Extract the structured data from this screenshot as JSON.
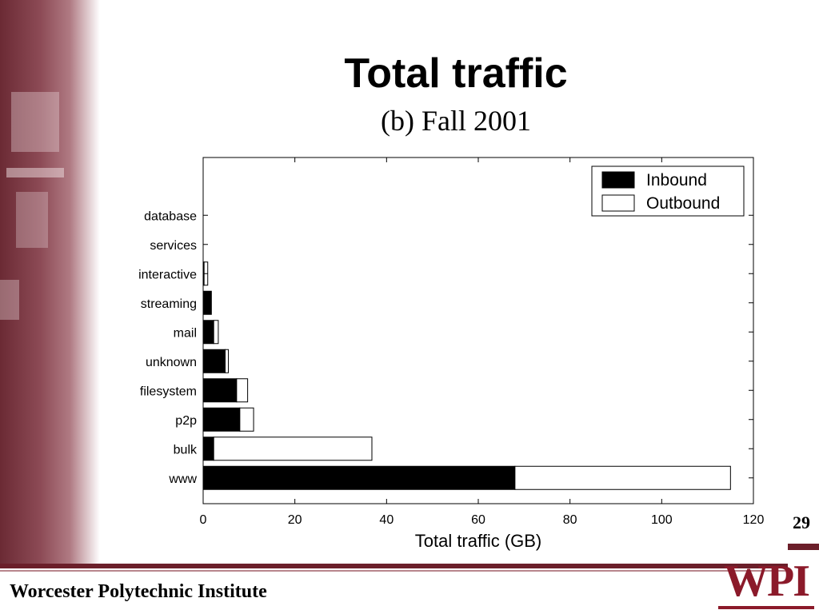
{
  "slide": {
    "title": "Total traffic",
    "page_number": "29",
    "institute": "Worcester Polytechnic Institute",
    "logo_text": "WPI"
  },
  "colors": {
    "inbound": "#000000",
    "outbound": "#ffffff",
    "accent": "#6b1f2a"
  },
  "chart_data": {
    "type": "bar",
    "orientation": "horizontal",
    "stacked": true,
    "subtitle": "(b) Fall 2001",
    "xlabel": "Total traffic (GB)",
    "xlim": [
      0,
      120
    ],
    "xticks": [
      0,
      20,
      40,
      60,
      80,
      100,
      120
    ],
    "categories": [
      "database",
      "services",
      "interactive",
      "streaming",
      "mail",
      "unknown",
      "filesystem",
      "p2p",
      "bulk",
      "www"
    ],
    "series": [
      {
        "name": "Inbound",
        "values": [
          0,
          0,
          0.2,
          1.8,
          2.3,
          4.8,
          7.3,
          8.0,
          2.3,
          68.0
        ]
      },
      {
        "name": "Outbound",
        "values": [
          0,
          0,
          0.8,
          0.0,
          1.0,
          0.7,
          2.4,
          3.0,
          34.5,
          47.0
        ]
      }
    ],
    "legend": "top-right",
    "grid": false
  }
}
